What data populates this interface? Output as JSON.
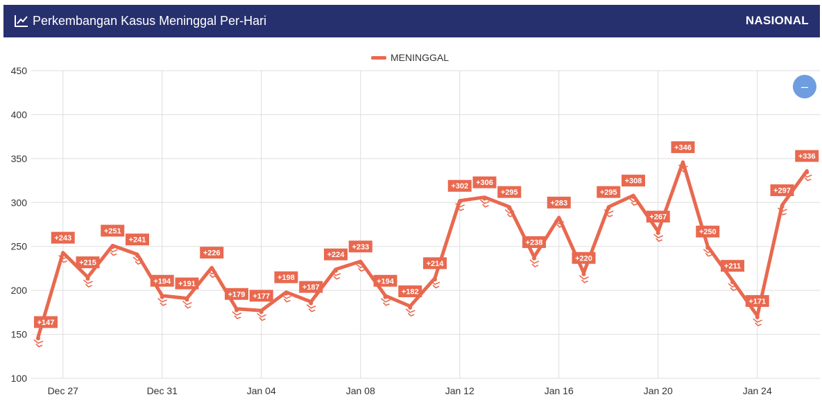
{
  "header": {
    "title": "Perkembangan Kasus Meninggal Per-Hari",
    "region": "NASIONAL",
    "icon": "line-chart-icon"
  },
  "zoom_button": {
    "label": "–",
    "icon": "minus-icon"
  },
  "colors": {
    "header_bg": "#27306e",
    "series": "#e8694f",
    "zoom_button": "#6e9de0",
    "grid": "#dddddd"
  },
  "chart_data": {
    "type": "line",
    "title": "Perkembangan Kasus Meninggal Per-Hari",
    "xlabel": "",
    "ylabel": "",
    "ylim": [
      100,
      450
    ],
    "y_ticks": [
      100,
      150,
      200,
      250,
      300,
      350,
      400,
      450
    ],
    "x_ticks": [
      "Dec 27",
      "Dec 31",
      "Jan 04",
      "Jan 08",
      "Jan 12",
      "Jan 16",
      "Jan 20",
      "Jan 24"
    ],
    "x_tick_positions": [
      1,
      5,
      9,
      13,
      17,
      21,
      25,
      29
    ],
    "grid": true,
    "legend_position": "top-center",
    "x": [
      "Dec 26",
      "Dec 27",
      "Dec 28",
      "Dec 29",
      "Dec 30",
      "Dec 31",
      "Jan 01",
      "Jan 02",
      "Jan 03",
      "Jan 04",
      "Jan 05",
      "Jan 06",
      "Jan 07",
      "Jan 08",
      "Jan 09",
      "Jan 10",
      "Jan 11",
      "Jan 12",
      "Jan 13",
      "Jan 14",
      "Jan 15",
      "Jan 16",
      "Jan 17",
      "Jan 18",
      "Jan 19",
      "Jan 20",
      "Jan 21",
      "Jan 22",
      "Jan 23",
      "Jan 24",
      "Jan 25",
      "Jan 26"
    ],
    "series": [
      {
        "name": "MENINGGAL",
        "values": [
          147,
          243,
          215,
          251,
          241,
          194,
          191,
          226,
          179,
          177,
          198,
          187,
          224,
          233,
          194,
          182,
          214,
          302,
          306,
          295,
          238,
          283,
          220,
          295,
          308,
          267,
          346,
          250,
          211,
          171,
          297,
          336
        ],
        "labels": [
          "+147",
          "+243",
          "+215",
          "+251",
          "+241",
          "+194",
          "+191",
          "+226",
          "+179",
          "+177",
          "+198",
          "+187",
          "+224",
          "+233",
          "+194",
          "+182",
          "+214",
          "+302",
          "+306",
          "+295",
          "+238",
          "+283",
          "+220",
          "+295",
          "+308",
          "+267",
          "+346",
          "+250",
          "+211",
          "+171",
          "+297",
          "+336"
        ]
      }
    ]
  }
}
